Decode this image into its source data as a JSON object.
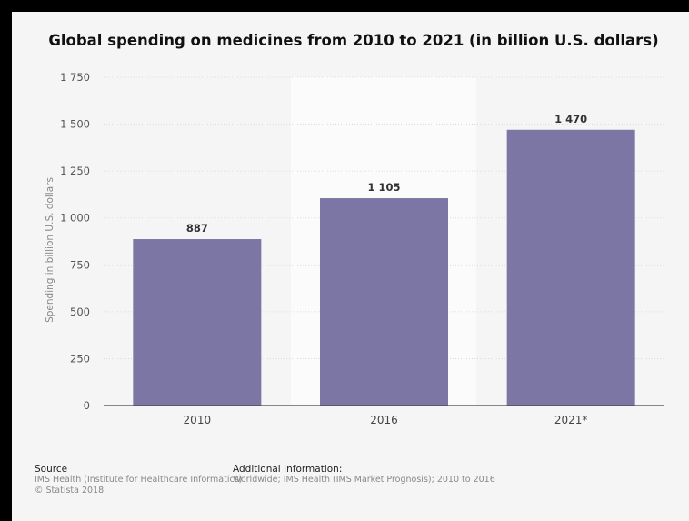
{
  "chart_data": {
    "type": "bar",
    "title": "Global spending on medicines from 2010 to 2021 (in billion U.S. dollars)",
    "xlabel": "",
    "ylabel": "Spending in billion U.S. dollars",
    "categories": [
      "2010",
      "2016",
      "2021*"
    ],
    "values": [
      887,
      1105,
      1470
    ],
    "data_labels": [
      "887",
      "1 105",
      "1 470"
    ],
    "ylim": [
      0,
      1750
    ],
    "yticks": [
      0,
      250,
      500,
      750,
      1000,
      1250,
      1500,
      1750
    ],
    "ytick_labels": [
      "0",
      "250",
      "500",
      "750",
      "1 000",
      "1 250",
      "1 500",
      "1 750"
    ],
    "grid": true,
    "bar_color": "#7b76a3"
  },
  "footer": {
    "source_heading": "Source",
    "source_text": "IMS Health (Institute for Healthcare Informatics)",
    "copyright": "© Statista 2018",
    "additional_heading": "Additional Information:",
    "additional_text": "Worldwide; IMS Health (IMS Market Prognosis); 2010 to 2016"
  }
}
